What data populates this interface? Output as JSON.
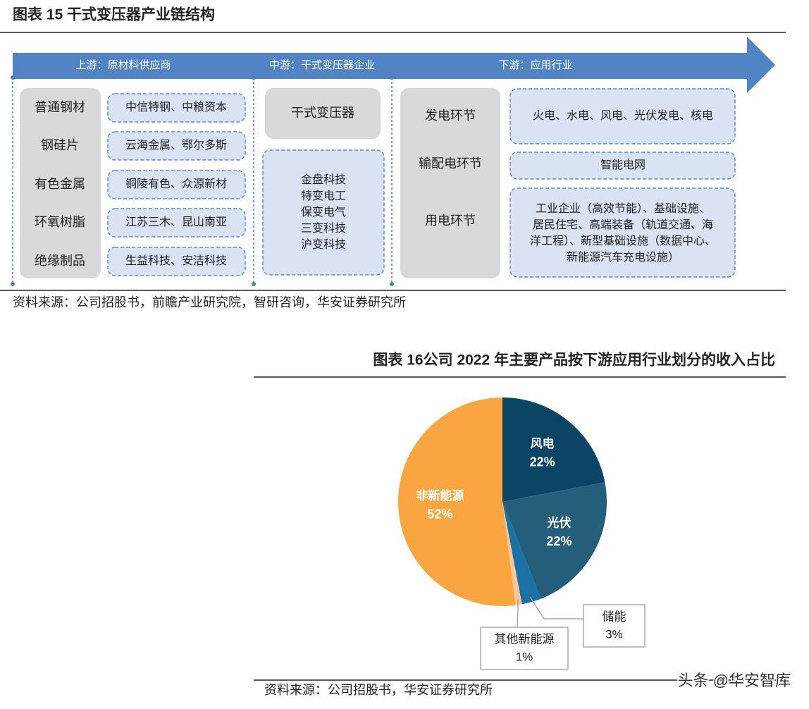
{
  "figure15": {
    "title": "图表 15 干式变压器产业链结构",
    "stages": [
      "上游：原材料供应商",
      "中游：干式变压器企业",
      "下游：应用行业"
    ],
    "materials": [
      "普通钢材",
      "钢硅片",
      "有色金属",
      "环氧树脂",
      "绝缘制品"
    ],
    "material_suppliers": [
      "中信特钢、中粮资本",
      "云海金属、鄂尔多斯",
      "铜陵有色、众源新材",
      "江苏三木、昆山南亚",
      "生益科技、安洁科技"
    ],
    "product": "干式变压器",
    "manufacturers": [
      "金盘科技",
      "特变电工",
      "保变电气",
      "三变科技",
      "沪变科技"
    ],
    "segments": [
      "发电环节",
      "输配电环节",
      "用电环节"
    ],
    "applications": [
      [
        "火电、水电、风电、光伏发电、核电"
      ],
      [
        "智能电网"
      ],
      [
        "工业企业（高效节能）、基础设施、",
        "居民住宅、高端装备（轨道交通、海",
        "洋工程）、新型基础设施（数据中心、",
        "新能源汽车充电设施）"
      ]
    ],
    "source": "资料来源：公司招股书，前瞻产业研究院，智研咨询，华安证券研究所"
  },
  "chart_data": {
    "type": "pie",
    "title": "图表 16公司 2022 年主要产品按下游应用行业划分的收入占比",
    "categories": [
      "风电",
      "光伏",
      "储能",
      "其他新能源",
      "非新能源"
    ],
    "values": [
      22,
      22,
      3,
      1,
      52
    ],
    "value_labels": [
      "22%",
      "22%",
      "3%",
      "1%",
      "52%"
    ],
    "colors": [
      "#0b4566",
      "#235e7a",
      "#1a71a6",
      "#f7c797",
      "#f9a542"
    ]
  },
  "figure16_source": "资料来源：公司招股书，华安证券研究所",
  "watermark": "头条 @华安智库"
}
